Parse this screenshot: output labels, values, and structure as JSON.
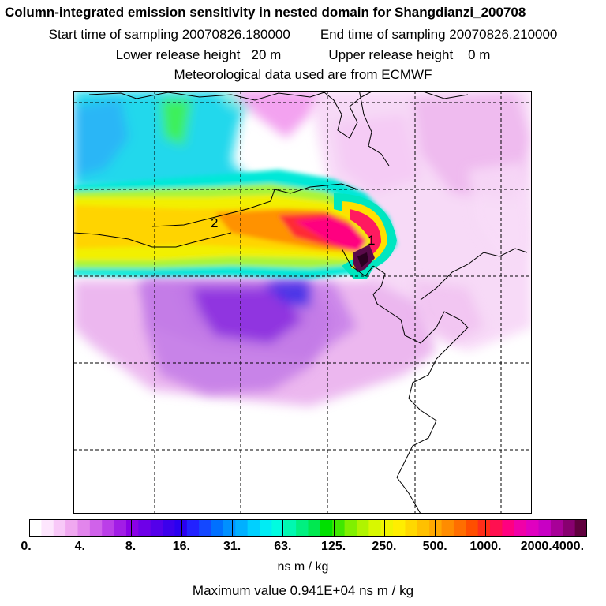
{
  "titles": {
    "line1": "Column-integrated emission sensitivity in nested domain for Shangdianzi_200708",
    "start_label": "Start time of sampling 20070826.180000",
    "end_label": "End time of sampling 20070826.210000",
    "lower_label": "Lower release height   20 m",
    "upper_label": "Upper release height    0 m",
    "met_label": "Meteorological data used are from ECMWF"
  },
  "map": {
    "point_labels": [
      "1",
      "2"
    ]
  },
  "colorbar": {
    "tick_labels": [
      "0.",
      "4.",
      "8.",
      "16.",
      "31.",
      "63.",
      "125.",
      "250.",
      "500.",
      "1000.",
      "2000.",
      "4000."
    ],
    "colors": [
      "#ffffff",
      "#fde6fd",
      "#f8c8f8",
      "#f0a8f0",
      "#e285ec",
      "#d062ea",
      "#bb3ee8",
      "#a21de6",
      "#8a00e6",
      "#6e00e8",
      "#5400ea",
      "#3c00ec",
      "#2a00f0",
      "#2222ff",
      "#1448ff",
      "#0070ff",
      "#0090ff",
      "#00b0ff",
      "#00d0ff",
      "#00ecf4",
      "#00fce0",
      "#00f8b0",
      "#00f080",
      "#00e850",
      "#00e000",
      "#40e800",
      "#80f000",
      "#b0f400",
      "#d8f800",
      "#f0f400",
      "#ffee00",
      "#ffd800",
      "#ffc000",
      "#ffa800",
      "#ff8c00",
      "#ff6e00",
      "#ff4e00",
      "#ff2e18",
      "#ff1050",
      "#ff0080",
      "#f000a8",
      "#e000c0",
      "#c800c4",
      "#a80098",
      "#880070",
      "#60003e"
    ]
  },
  "units": "ns m / kg",
  "max_value": "Maximum value  0.941E+04 ns m / kg"
}
